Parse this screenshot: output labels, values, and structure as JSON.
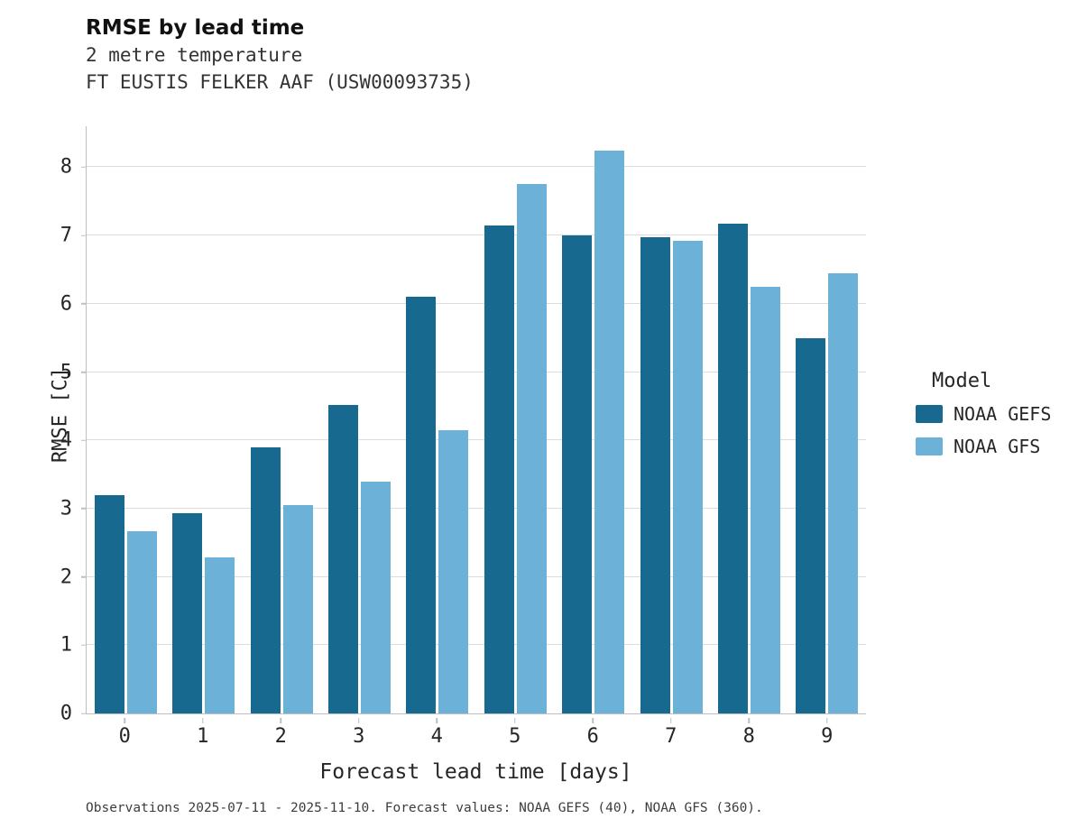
{
  "title": "RMSE by lead time",
  "subtitle1": "2 metre temperature",
  "subtitle2": "FT EUSTIS FELKER AAF (USW00093735)",
  "footer": "Observations 2025-07-11 - 2025-11-10. Forecast values: NOAA GEFS (40), NOAA GFS (360).",
  "legend": {
    "title": "Model",
    "entries": [
      {
        "label": "NOAA GEFS",
        "color": "#17698f"
      },
      {
        "label": "NOAA GFS",
        "color": "#6bb1d8"
      }
    ]
  },
  "chart_data": {
    "type": "bar",
    "title": "RMSE by lead time",
    "subtitle": "2 metre temperature — FT EUSTIS FELKER AAF (USW00093735)",
    "xlabel": "Forecast lead time [days]",
    "ylabel": "RMSE [C]",
    "categories": [
      "0",
      "1",
      "2",
      "3",
      "4",
      "5",
      "6",
      "7",
      "8",
      "9"
    ],
    "series": [
      {
        "name": "NOAA GEFS",
        "color": "#17698f",
        "values": [
          3.2,
          2.93,
          3.9,
          4.52,
          6.1,
          7.15,
          7.0,
          6.98,
          7.18,
          5.5
        ]
      },
      {
        "name": "NOAA GFS",
        "color": "#6bb1d8",
        "values": [
          2.67,
          2.28,
          3.05,
          3.4,
          4.15,
          7.75,
          8.25,
          6.92,
          6.25,
          6.45
        ]
      }
    ],
    "ylim": [
      0,
      8.6
    ],
    "yticks": [
      0,
      1,
      2,
      3,
      4,
      5,
      6,
      7,
      8
    ],
    "grid": true,
    "legend_position": "right",
    "legend_title": "Model"
  }
}
